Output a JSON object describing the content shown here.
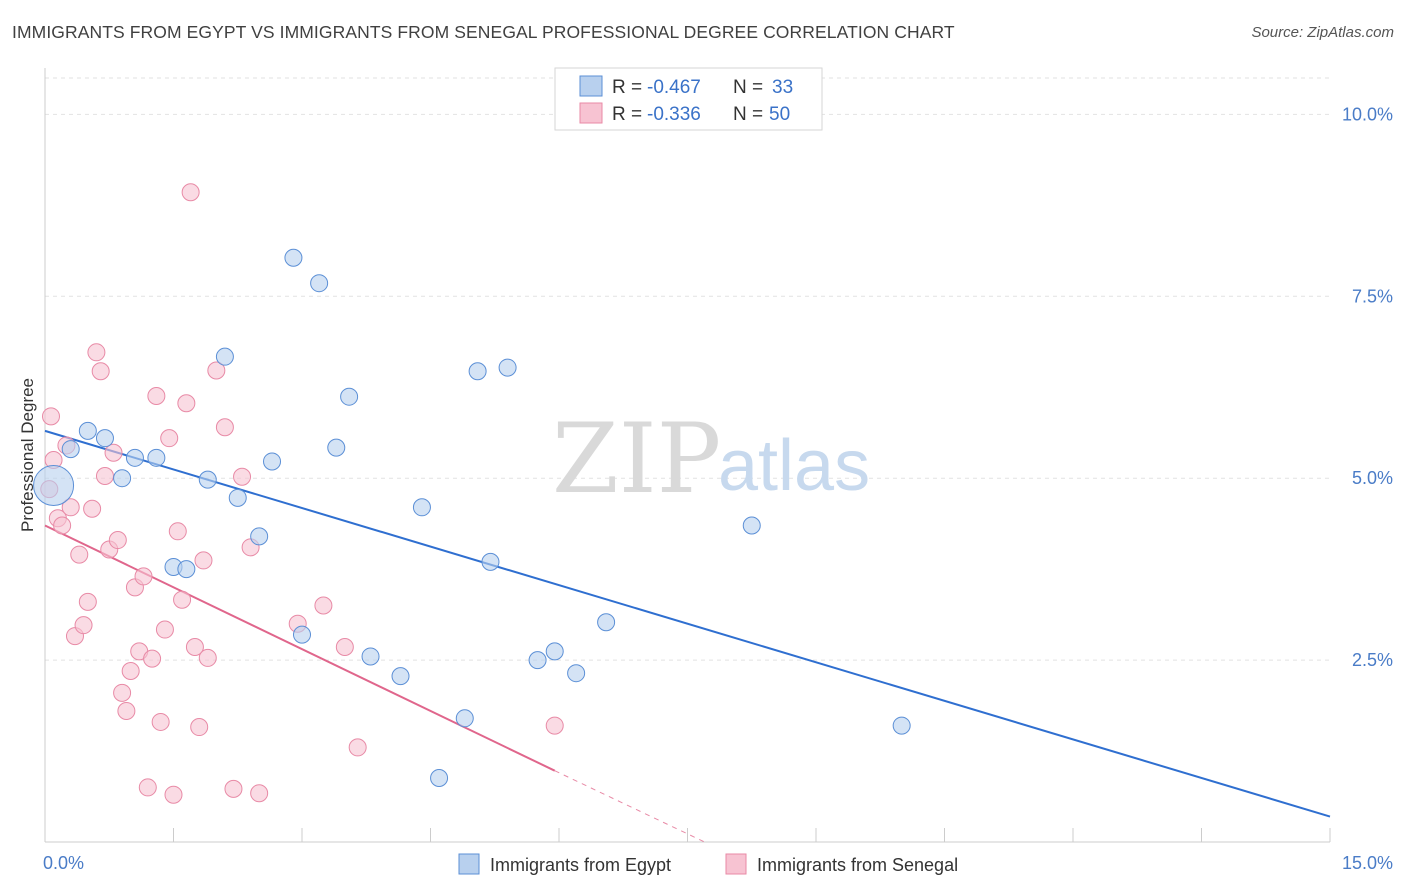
{
  "header": {
    "title": "IMMIGRANTS FROM EGYPT VS IMMIGRANTS FROM SENEGAL PROFESSIONAL DEGREE CORRELATION CHART",
    "source": "Source: ZipAtlas.com"
  },
  "watermark": {
    "zip": "ZIP",
    "atlas": "atlas"
  },
  "legend": {
    "egypt": {
      "r_label": "R = ",
      "r_value": "-0.467",
      "n_label": "N = ",
      "n_value": "33"
    },
    "senegal": {
      "r_label": "R = ",
      "r_value": "-0.336",
      "n_label": "N = ",
      "n_value": "50"
    }
  },
  "colors": {
    "egypt_fill": "#b8d0ee",
    "egypt_stroke": "#5b8fd6",
    "egypt_line": "#2f6fd0",
    "senegal_fill": "#f7c3d2",
    "senegal_stroke": "#e88aa6",
    "senegal_line": "#e0668c",
    "grid": "#e2e2e2",
    "tick": "#4a7cc7"
  },
  "chart_data": {
    "type": "scatter",
    "title": "IMMIGRANTS FROM EGYPT VS IMMIGRANTS FROM SENEGAL PROFESSIONAL DEGREE CORRELATION CHART",
    "xlabel": "",
    "ylabel": "Professional Degree",
    "xlim": [
      0,
      15
    ],
    "ylim": [
      0,
      10.5
    ],
    "x_tick_labels": [
      "0.0%",
      "15.0%"
    ],
    "y_ticks": [
      2.5,
      5.0,
      7.5,
      10.0
    ],
    "y_tick_labels": [
      "2.5%",
      "5.0%",
      "7.5%",
      "10.0%"
    ],
    "series": [
      {
        "name": "Immigrants from Egypt",
        "points": [
          [
            0.1,
            4.9
          ],
          [
            0.3,
            5.4
          ],
          [
            0.5,
            5.65
          ],
          [
            0.7,
            5.55
          ],
          [
            0.9,
            5.0
          ],
          [
            1.05,
            5.28
          ],
          [
            1.3,
            5.28
          ],
          [
            1.5,
            3.78
          ],
          [
            1.65,
            3.75
          ],
          [
            1.9,
            4.98
          ],
          [
            2.1,
            6.67
          ],
          [
            2.25,
            4.73
          ],
          [
            2.5,
            4.2
          ],
          [
            2.65,
            5.23
          ],
          [
            2.9,
            8.03
          ],
          [
            3.0,
            2.85
          ],
          [
            3.2,
            7.68
          ],
          [
            3.4,
            5.42
          ],
          [
            3.55,
            6.12
          ],
          [
            3.8,
            2.55
          ],
          [
            4.15,
            2.28
          ],
          [
            4.4,
            4.6
          ],
          [
            4.6,
            0.88
          ],
          [
            4.9,
            1.7
          ],
          [
            5.05,
            6.47
          ],
          [
            5.2,
            3.85
          ],
          [
            5.4,
            6.52
          ],
          [
            5.75,
            2.5
          ],
          [
            5.95,
            2.62
          ],
          [
            6.2,
            2.32
          ],
          [
            6.55,
            3.02
          ],
          [
            8.25,
            4.35
          ],
          [
            10.0,
            1.6
          ]
        ],
        "trendline": {
          "x": [
            0,
            15
          ],
          "y": [
            5.65,
            0.35
          ]
        }
      },
      {
        "name": "Immigrants from Senegal",
        "points": [
          [
            0.05,
            4.85
          ],
          [
            0.07,
            5.85
          ],
          [
            0.1,
            5.25
          ],
          [
            0.15,
            4.45
          ],
          [
            0.2,
            4.35
          ],
          [
            0.25,
            5.45
          ],
          [
            0.3,
            4.6
          ],
          [
            0.35,
            2.83
          ],
          [
            0.4,
            3.95
          ],
          [
            0.45,
            2.98
          ],
          [
            0.5,
            3.3
          ],
          [
            0.55,
            4.58
          ],
          [
            0.6,
            6.73
          ],
          [
            0.65,
            6.47
          ],
          [
            0.7,
            5.03
          ],
          [
            0.75,
            4.02
          ],
          [
            0.8,
            5.35
          ],
          [
            0.85,
            4.15
          ],
          [
            0.9,
            2.05
          ],
          [
            0.95,
            1.8
          ],
          [
            1.0,
            2.35
          ],
          [
            1.05,
            3.5
          ],
          [
            1.1,
            2.62
          ],
          [
            1.15,
            3.65
          ],
          [
            1.2,
            0.75
          ],
          [
            1.25,
            2.52
          ],
          [
            1.3,
            6.13
          ],
          [
            1.35,
            1.65
          ],
          [
            1.4,
            2.92
          ],
          [
            1.45,
            5.55
          ],
          [
            1.5,
            0.65
          ],
          [
            1.55,
            4.27
          ],
          [
            1.6,
            3.33
          ],
          [
            1.65,
            6.03
          ],
          [
            1.7,
            8.93
          ],
          [
            1.75,
            2.68
          ],
          [
            1.8,
            1.58
          ],
          [
            1.85,
            3.87
          ],
          [
            1.9,
            2.53
          ],
          [
            2.0,
            6.48
          ],
          [
            2.1,
            5.7
          ],
          [
            2.2,
            0.73
          ],
          [
            2.3,
            5.02
          ],
          [
            2.4,
            4.05
          ],
          [
            2.5,
            0.67
          ],
          [
            2.95,
            3.0
          ],
          [
            3.25,
            3.25
          ],
          [
            3.5,
            2.68
          ],
          [
            3.65,
            1.3
          ],
          [
            5.95,
            1.6
          ]
        ],
        "trendline": {
          "x": [
            0,
            5.95
          ],
          "y": [
            4.35,
            0.98
          ]
        },
        "trendline_extension": {
          "x": [
            5.95,
            7.7
          ],
          "y": [
            0.98,
            0.0
          ]
        }
      }
    ],
    "legend_position": "bottom-center"
  },
  "bottom_legend": {
    "egypt_label": "Immigrants from Egypt",
    "senegal_label": "Immigrants from Senegal"
  }
}
